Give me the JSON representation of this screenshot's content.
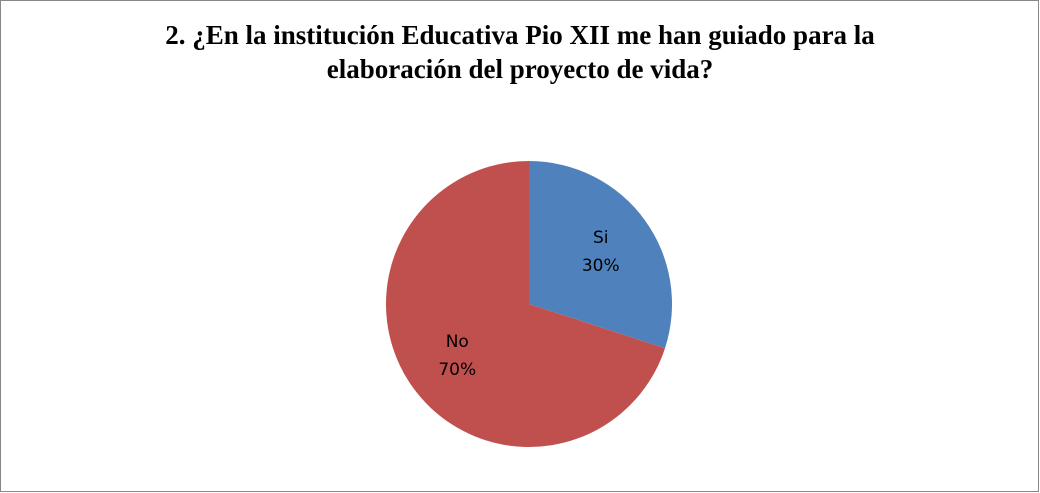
{
  "chart_data": {
    "type": "pie",
    "title": "2. ¿En la institución Educativa Pio XII me han guiado para la elaboración del proyecto de vida?",
    "categories": [
      "Si",
      "No"
    ],
    "values": [
      30,
      70
    ],
    "value_labels": [
      "30%",
      "70%"
    ],
    "colors": [
      "#4f81bd",
      "#c0504d"
    ]
  }
}
